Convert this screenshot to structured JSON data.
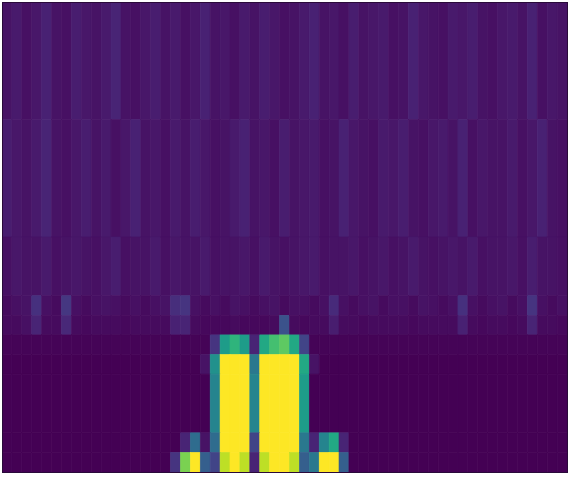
{
  "chart_data": {
    "type": "heatmap",
    "color": "viridis",
    "tick_labels": false,
    "xlim": [
      0,
      57
    ],
    "ylim": [
      0,
      24
    ],
    "zlim": [
      0,
      100
    ],
    "y_edges": [
      24,
      18,
      12,
      9,
      8,
      7,
      6,
      5,
      2,
      1,
      0
    ],
    "cells": [
      [
        5,
        7,
        4,
        6,
        9,
        5,
        4,
        8,
        6,
        5,
        7,
        10,
        5,
        4,
        6,
        8,
        5,
        7,
        4,
        6,
        9,
        5,
        6,
        4,
        7,
        5,
        8,
        6,
        4,
        5,
        7,
        9,
        5,
        6,
        4,
        8,
        5,
        6,
        7,
        4,
        5,
        9,
        6,
        5,
        4,
        7,
        6,
        8,
        5,
        4,
        6,
        7,
        5,
        9,
        4,
        6,
        5
      ],
      [
        8,
        6,
        5,
        7,
        10,
        5,
        4,
        6,
        8,
        5,
        7,
        4,
        6,
        9,
        5,
        6,
        4,
        7,
        5,
        8,
        6,
        4,
        5,
        7,
        9,
        5,
        6,
        4,
        8,
        5,
        6,
        7,
        4,
        5,
        9,
        6,
        5,
        4,
        7,
        6,
        8,
        5,
        4,
        6,
        7,
        5,
        9,
        4,
        6,
        5,
        5,
        7,
        4,
        6,
        9,
        5,
        4
      ],
      [
        4,
        6,
        5,
        5,
        7,
        4,
        5,
        6,
        5,
        4,
        6,
        8,
        4,
        5,
        5,
        7,
        4,
        6,
        5,
        5,
        7,
        4,
        5,
        5,
        6,
        4,
        7,
        5,
        4,
        5,
        6,
        7,
        4,
        5,
        5,
        6,
        4,
        5,
        6,
        4,
        5,
        7,
        5,
        4,
        5,
        6,
        5,
        7,
        4,
        5,
        5,
        6,
        4,
        8,
        5,
        5,
        4
      ],
      [
        3,
        4,
        5,
        14,
        4,
        3,
        16,
        4,
        3,
        4,
        5,
        4,
        3,
        4,
        3,
        4,
        5,
        13,
        15,
        4,
        3,
        4,
        3,
        5,
        4,
        3,
        4,
        5,
        3,
        4,
        4,
        3,
        4,
        12,
        4,
        3,
        4,
        5,
        3,
        4,
        4,
        3,
        5,
        4,
        3,
        4,
        14,
        4,
        3,
        4,
        5,
        3,
        4,
        15,
        4,
        3,
        4
      ],
      [
        3,
        3,
        4,
        10,
        3,
        3,
        11,
        3,
        2,
        3,
        3,
        3,
        2,
        3,
        3,
        3,
        3,
        9,
        10,
        3,
        2,
        2,
        2,
        3,
        2,
        2,
        2,
        3,
        25,
        3,
        2,
        3,
        3,
        8,
        3,
        3,
        2,
        3,
        3,
        3,
        3,
        2,
        3,
        3,
        3,
        3,
        9,
        3,
        2,
        3,
        3,
        2,
        3,
        10,
        3,
        3,
        2
      ],
      [
        1,
        1,
        1,
        1,
        1,
        1,
        1,
        1,
        1,
        1,
        1,
        1,
        1,
        1,
        1,
        1,
        1,
        1,
        1,
        1,
        1,
        15,
        55,
        65,
        55,
        10,
        60,
        70,
        75,
        60,
        20,
        1,
        1,
        1,
        1,
        1,
        1,
        1,
        1,
        1,
        1,
        1,
        1,
        1,
        1,
        1,
        1,
        1,
        1,
        1,
        1,
        1,
        1,
        1,
        1,
        1,
        1
      ],
      [
        0,
        0,
        0,
        0,
        0,
        0,
        0,
        0,
        0,
        0,
        0,
        0,
        0,
        0,
        0,
        0,
        0,
        0,
        0,
        0,
        5,
        50,
        100,
        100,
        100,
        40,
        100,
        100,
        100,
        100,
        60,
        5,
        0,
        0,
        0,
        0,
        0,
        0,
        0,
        0,
        0,
        0,
        0,
        0,
        0,
        0,
        0,
        0,
        0,
        0,
        0,
        0,
        0,
        0,
        0,
        0,
        0
      ],
      [
        0,
        0,
        0,
        0,
        0,
        0,
        0,
        0,
        0,
        0,
        0,
        0,
        0,
        0,
        0,
        0,
        0,
        0,
        0,
        0,
        0,
        45,
        100,
        100,
        100,
        45,
        100,
        100,
        100,
        100,
        55,
        0,
        0,
        0,
        0,
        0,
        0,
        0,
        0,
        0,
        0,
        0,
        0,
        0,
        0,
        0,
        0,
        0,
        0,
        0,
        0,
        0,
        0,
        0,
        0,
        0,
        0
      ],
      [
        0,
        0,
        0,
        0,
        0,
        0,
        0,
        0,
        0,
        0,
        0,
        0,
        0,
        0,
        0,
        0,
        0,
        0,
        10,
        35,
        5,
        35,
        100,
        100,
        100,
        20,
        100,
        100,
        100,
        100,
        40,
        10,
        45,
        60,
        10,
        0,
        0,
        0,
        0,
        0,
        0,
        0,
        0,
        0,
        0,
        0,
        0,
        0,
        0,
        0,
        0,
        0,
        0,
        0,
        0,
        0,
        0
      ],
      [
        0,
        0,
        0,
        0,
        0,
        0,
        0,
        0,
        0,
        0,
        0,
        0,
        0,
        0,
        0,
        0,
        0,
        15,
        80,
        100,
        30,
        20,
        90,
        100,
        90,
        10,
        90,
        100,
        100,
        90,
        30,
        40,
        100,
        100,
        30,
        0,
        0,
        0,
        0,
        0,
        0,
        0,
        0,
        0,
        0,
        0,
        0,
        0,
        0,
        0,
        0,
        0,
        0,
        0,
        0,
        0,
        0
      ]
    ]
  }
}
